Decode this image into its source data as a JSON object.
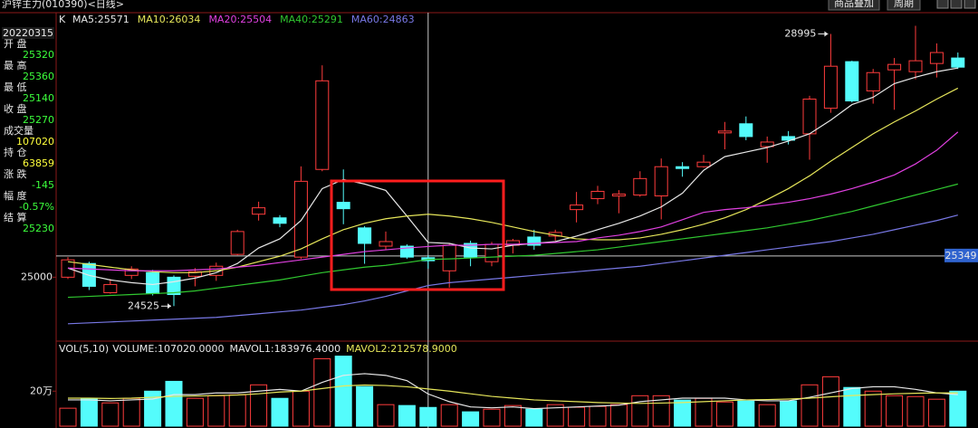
{
  "header": {
    "title": "沪锌主力(010390)<日线>",
    "buttons": [
      "商品叠加",
      "周期"
    ]
  },
  "info_panel": {
    "date": "20220315",
    "items": [
      {
        "label": "开 盘",
        "value": 25320,
        "color": "#3cff3c"
      },
      {
        "label": "最 高",
        "value": 25360,
        "color": "#3cff3c"
      },
      {
        "label": "最 低",
        "value": 25140,
        "color": "#3cff3c"
      },
      {
        "label": "收 盘",
        "value": 25270,
        "color": "#3cff3c"
      },
      {
        "label": "成交量",
        "value": 107020,
        "color": "#ffff3c"
      },
      {
        "label": "持 仓",
        "value": 63859,
        "color": "#ffff3c"
      },
      {
        "label": "涨 跌",
        "value": -145,
        "color": "#3cff3c"
      },
      {
        "label": "幅 度",
        "value": "-0.57%",
        "color": "#3cff3c"
      },
      {
        "label": "结 算",
        "value": 25230,
        "color": "#3cff3c"
      }
    ]
  },
  "chart_data": [
    {
      "type": "candlestick",
      "label": "K",
      "up_color": "#ff3c3c",
      "down_color": "#54fcfc",
      "categories": [
        null,
        null,
        null,
        null,
        null,
        null,
        null,
        null,
        null,
        null,
        null,
        null,
        null,
        null,
        null,
        null,
        null,
        null,
        null,
        null,
        null,
        null,
        null,
        null,
        null,
        null,
        null,
        null,
        null,
        null,
        null,
        null,
        null,
        null,
        null,
        null,
        null,
        null,
        null,
        null,
        null,
        null,
        null
      ],
      "open": [
        25000,
        25225,
        24745,
        25030,
        25075,
        25000,
        25015,
        25030,
        25375,
        26035,
        25975,
        25330,
        26770,
        26230,
        25810,
        25510,
        25510,
        25320,
        25105,
        25555,
        25255,
        25525,
        25660,
        25675,
        26110,
        26290,
        26335,
        26350,
        26335,
        26815,
        26815,
        27370,
        27520,
        27145,
        27310,
        27355,
        27775,
        28540,
        28060,
        28405,
        28375,
        28510,
        28600
      ],
      "high": [
        25330,
        25255,
        24970,
        25180,
        25120,
        25030,
        25150,
        25240,
        25780,
        26240,
        26020,
        26820,
        28480,
        26770,
        25840,
        25750,
        25540,
        25360,
        25550,
        25600,
        25580,
        25630,
        25780,
        25780,
        26400,
        26500,
        26430,
        26740,
        26950,
        26890,
        27010,
        27550,
        27640,
        27310,
        27400,
        27980,
        28995,
        28555,
        28420,
        28600,
        29130,
        28840,
        28690
      ],
      "low": [
        24970,
        24790,
        24730,
        24970,
        24700,
        24525,
        24850,
        24940,
        25360,
        25930,
        25820,
        25300,
        26740,
        25870,
        25220,
        25450,
        25300,
        25140,
        24830,
        25180,
        25180,
        25390,
        25450,
        25600,
        25900,
        26200,
        26050,
        26320,
        25950,
        26650,
        26800,
        27100,
        27250,
        26880,
        27180,
        26930,
        27700,
        27870,
        27850,
        27750,
        28250,
        28280,
        28420
      ],
      "close": [
        25285,
        24850,
        24880,
        25135,
        24730,
        24715,
        25090,
        25180,
        25750,
        26140,
        25885,
        26575,
        28225,
        26125,
        25555,
        25585,
        25330,
        25270,
        25525,
        25330,
        25540,
        25600,
        25525,
        25735,
        26185,
        26410,
        26365,
        26620,
        26815,
        26785,
        26890,
        27400,
        27310,
        27220,
        27250,
        27925,
        28465,
        27895,
        28360,
        28495,
        28555,
        28690,
        28450
      ],
      "high_label": 28995,
      "low_label": 24525,
      "crosshair": 25349,
      "ylim": [
        23950,
        29300
      ],
      "yticks": [
        25000
      ],
      "series": [
        {
          "name": "MA5:25571",
          "color": "#e8e8e8",
          "values": [
            25150,
            25030,
            24955,
            24910,
            24880,
            24925,
            24985,
            25075,
            25225,
            25480,
            25630,
            25930,
            26455,
            26605,
            26530,
            26425,
            26005,
            25571,
            25555,
            25480,
            25465,
            25525,
            25555,
            25585,
            25675,
            25780,
            25885,
            26005,
            26155,
            26380,
            26755,
            26980,
            27055,
            27130,
            27235,
            27355,
            27580,
            27835,
            27955,
            28180,
            28285,
            28375,
            28435
          ]
        },
        {
          "name": "MA10:26034",
          "color": "#e6e65a",
          "values": [
            25255,
            25210,
            25165,
            25120,
            25090,
            25075,
            25075,
            25105,
            25165,
            25255,
            25345,
            25465,
            25630,
            25780,
            25885,
            25960,
            26005,
            26034,
            26005,
            25960,
            25900,
            25825,
            25750,
            25690,
            25630,
            25615,
            25615,
            25645,
            25705,
            25780,
            25870,
            25975,
            26110,
            26275,
            26455,
            26665,
            26905,
            27130,
            27355,
            27550,
            27730,
            27925,
            28105
          ]
        },
        {
          "name": "MA20:25504",
          "color": "#e040e0",
          "values": [
            25150,
            25135,
            25120,
            25105,
            25105,
            25105,
            25120,
            25135,
            25165,
            25195,
            25240,
            25285,
            25330,
            25375,
            25420,
            25450,
            25480,
            25504,
            25525,
            25525,
            25540,
            25540,
            25555,
            25570,
            25585,
            25645,
            25690,
            25750,
            25825,
            25945,
            26065,
            26110,
            26140,
            26185,
            26230,
            26290,
            26365,
            26455,
            26560,
            26680,
            26860,
            27085,
            27385
          ]
        },
        {
          "name": "MA40:25291",
          "color": "#30c830",
          "values": [
            24670,
            24685,
            24700,
            24715,
            24730,
            24745,
            24775,
            24820,
            24865,
            24910,
            24955,
            25015,
            25075,
            25120,
            25165,
            25195,
            25240,
            25291,
            25300,
            25315,
            25330,
            25345,
            25360,
            25390,
            25420,
            25450,
            25495,
            25540,
            25585,
            25630,
            25675,
            25720,
            25765,
            25810,
            25870,
            25930,
            26005,
            26080,
            26170,
            26260,
            26350,
            26440,
            26530
          ]
        },
        {
          "name": "MA60:24863",
          "color": "#7878e6",
          "values": [
            24235,
            24250,
            24265,
            24280,
            24295,
            24310,
            24325,
            24340,
            24370,
            24400,
            24430,
            24460,
            24505,
            24550,
            24610,
            24685,
            24775,
            24863,
            24910,
            24940,
            24970,
            25000,
            25030,
            25060,
            25090,
            25120,
            25150,
            25180,
            25225,
            25270,
            25315,
            25360,
            25405,
            25450,
            25495,
            25540,
            25585,
            25645,
            25705,
            25780,
            25855,
            25930,
            26020
          ]
        }
      ]
    },
    {
      "type": "bar",
      "label": "VOL(5,10)",
      "value_text": "VOLUME:107020.0000",
      "values": [
        102600,
        159000,
        133000,
        159000,
        200000,
        256000,
        159000,
        174000,
        179000,
        236000,
        159000,
        200000,
        385000,
        400000,
        226000,
        123000,
        118000,
        107020,
        123000,
        82000,
        97000,
        118000,
        97000,
        123000,
        108000,
        113000,
        123000,
        174000,
        174000,
        149000,
        159000,
        138000,
        144000,
        123000,
        144000,
        236000,
        282000,
        221000,
        200000,
        174000,
        169000,
        154000,
        200000
      ],
      "ylim": [
        0,
        470000
      ],
      "yticks": [
        {
          "value": 200000,
          "label": "20万"
        }
      ],
      "series": [
        {
          "name": "MAVOL1:183976.4000",
          "color": "#e8e8e8",
          "values": [
            150000,
            150000,
            145000,
            150000,
            155000,
            180000,
            180000,
            190000,
            190000,
            200000,
            210000,
            200000,
            250000,
            290000,
            300000,
            290000,
            260000,
            183976.4,
            140000,
            110000,
            105000,
            110000,
            100000,
            105000,
            110000,
            115000,
            120000,
            140000,
            150000,
            160000,
            160000,
            160000,
            150000,
            145000,
            145000,
            165000,
            190000,
            215000,
            225000,
            225000,
            210000,
            190000,
            180000
          ]
        },
        {
          "name": "MAVOL2:212578.9000",
          "color": "#e6e65a",
          "values": [
            160000,
            160000,
            158000,
            160000,
            165000,
            170000,
            172000,
            175000,
            178000,
            185000,
            195000,
            200000,
            215000,
            230000,
            235000,
            232000,
            225000,
            212578.9,
            200000,
            185000,
            170000,
            160000,
            150000,
            145000,
            140000,
            135000,
            132000,
            130000,
            132000,
            135000,
            140000,
            145000,
            150000,
            152000,
            155000,
            160000,
            168000,
            175000,
            180000,
            185000,
            188000,
            190000,
            190000
          ]
        }
      ]
    }
  ]
}
